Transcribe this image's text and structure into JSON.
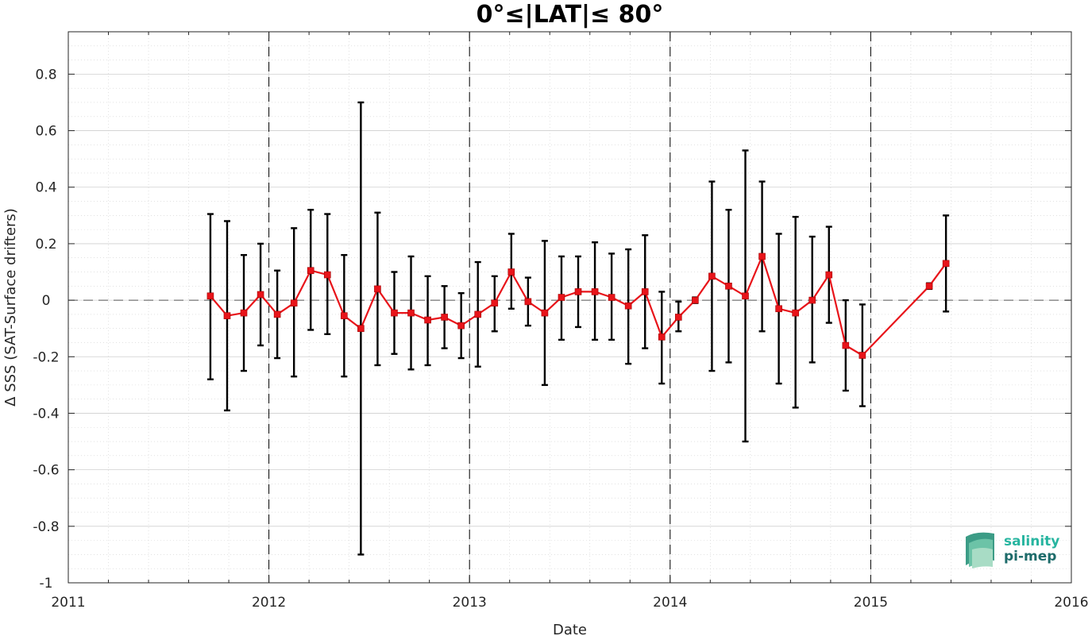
{
  "chart_data": {
    "type": "line",
    "title": "0°≤|LAT|≤ 80°",
    "xlabel": "Date",
    "ylabel": "Δ SSS (SAT-Surface drifters)",
    "xlim": [
      2011,
      2016
    ],
    "ylim": [
      -1,
      0.95
    ],
    "x_ticks": [
      "2011",
      "2012",
      "2013",
      "2014",
      "2015",
      "2016"
    ],
    "y_ticks": [
      "-1",
      "-0.8",
      "-0.6",
      "-0.4",
      "-0.2",
      "0",
      "0.2",
      "0.4",
      "0.6",
      "0.8"
    ],
    "grid": true,
    "reference_lines": {
      "y_zero": true,
      "year_boundaries": [
        "2012",
        "2013",
        "2014",
        "2015"
      ]
    },
    "series": [
      {
        "color": "#e8141a",
        "marker": "square",
        "points": [
          {
            "x": "2011-09",
            "y": 0.015,
            "lo": -0.28,
            "hi": 0.305
          },
          {
            "x": "2011-10",
            "y": -0.055,
            "lo": -0.39,
            "hi": 0.28
          },
          {
            "x": "2011-11",
            "y": -0.045,
            "lo": -0.25,
            "hi": 0.16
          },
          {
            "x": "2011-12",
            "y": 0.02,
            "lo": -0.16,
            "hi": 0.2
          },
          {
            "x": "2012-01",
            "y": -0.05,
            "lo": -0.205,
            "hi": 0.105
          },
          {
            "x": "2012-02",
            "y": -0.01,
            "lo": -0.27,
            "hi": 0.255
          },
          {
            "x": "2012-03",
            "y": 0.105,
            "lo": -0.105,
            "hi": 0.32
          },
          {
            "x": "2012-04",
            "y": 0.09,
            "lo": -0.12,
            "hi": 0.305
          },
          {
            "x": "2012-05",
            "y": -0.055,
            "lo": -0.27,
            "hi": 0.16
          },
          {
            "x": "2012-06",
            "y": -0.1,
            "lo": -0.9,
            "hi": 0.7
          },
          {
            "x": "2012-07",
            "y": 0.04,
            "lo": -0.23,
            "hi": 0.31
          },
          {
            "x": "2012-08",
            "y": -0.045,
            "lo": -0.19,
            "hi": 0.1
          },
          {
            "x": "2012-09",
            "y": -0.045,
            "lo": -0.245,
            "hi": 0.155
          },
          {
            "x": "2012-10",
            "y": -0.07,
            "lo": -0.23,
            "hi": 0.085
          },
          {
            "x": "2012-11",
            "y": -0.06,
            "lo": -0.17,
            "hi": 0.05
          },
          {
            "x": "2012-12",
            "y": -0.09,
            "lo": -0.205,
            "hi": 0.025
          },
          {
            "x": "2013-01",
            "y": -0.05,
            "lo": -0.235,
            "hi": 0.135
          },
          {
            "x": "2013-02",
            "y": -0.01,
            "lo": -0.11,
            "hi": 0.085
          },
          {
            "x": "2013-03",
            "y": 0.1,
            "lo": -0.03,
            "hi": 0.235
          },
          {
            "x": "2013-04",
            "y": -0.005,
            "lo": -0.09,
            "hi": 0.08
          },
          {
            "x": "2013-05",
            "y": -0.045,
            "lo": -0.3,
            "hi": 0.21
          },
          {
            "x": "2013-06",
            "y": 0.01,
            "lo": -0.14,
            "hi": 0.155
          },
          {
            "x": "2013-07",
            "y": 0.03,
            "lo": -0.095,
            "hi": 0.155
          },
          {
            "x": "2013-08",
            "y": 0.03,
            "lo": -0.14,
            "hi": 0.205
          },
          {
            "x": "2013-09",
            "y": 0.01,
            "lo": -0.14,
            "hi": 0.165
          },
          {
            "x": "2013-10",
            "y": -0.02,
            "lo": -0.225,
            "hi": 0.18
          },
          {
            "x": "2013-11",
            "y": 0.03,
            "lo": -0.17,
            "hi": 0.23
          },
          {
            "x": "2013-12",
            "y": -0.13,
            "lo": -0.295,
            "hi": 0.03
          },
          {
            "x": "2014-01",
            "y": -0.06,
            "lo": -0.11,
            "hi": -0.005
          },
          {
            "x": "2014-02",
            "y": 0.0,
            "lo": -0.01,
            "hi": 0.01
          },
          {
            "x": "2014-03",
            "y": 0.085,
            "lo": -0.25,
            "hi": 0.42
          },
          {
            "x": "2014-04",
            "y": 0.05,
            "lo": -0.22,
            "hi": 0.32
          },
          {
            "x": "2014-05",
            "y": 0.015,
            "lo": -0.5,
            "hi": 0.53
          },
          {
            "x": "2014-06",
            "y": 0.155,
            "lo": -0.11,
            "hi": 0.42
          },
          {
            "x": "2014-07",
            "y": -0.03,
            "lo": -0.295,
            "hi": 0.235
          },
          {
            "x": "2014-08",
            "y": -0.045,
            "lo": -0.38,
            "hi": 0.295
          },
          {
            "x": "2014-09",
            "y": 0.0,
            "lo": -0.22,
            "hi": 0.225
          },
          {
            "x": "2014-10",
            "y": 0.09,
            "lo": -0.08,
            "hi": 0.26
          },
          {
            "x": "2014-11",
            "y": -0.16,
            "lo": -0.32,
            "hi": 0.0
          },
          {
            "x": "2014-12",
            "y": -0.195,
            "lo": -0.375,
            "hi": -0.015
          },
          {
            "x": "2015-04",
            "y": 0.05,
            "lo": 0.04,
            "hi": 0.06
          },
          {
            "x": "2015-05",
            "y": 0.13,
            "lo": -0.04,
            "hi": 0.3
          }
        ]
      }
    ]
  },
  "logo": {
    "line1": "salinity",
    "line2": "pi-mep",
    "color1": "#27b5a0",
    "color2": "#1d6b6a"
  },
  "colors": {
    "series": "#e8141a",
    "errorbar": "#000000",
    "grid": "#cfcfcf",
    "axis": "#262626"
  }
}
